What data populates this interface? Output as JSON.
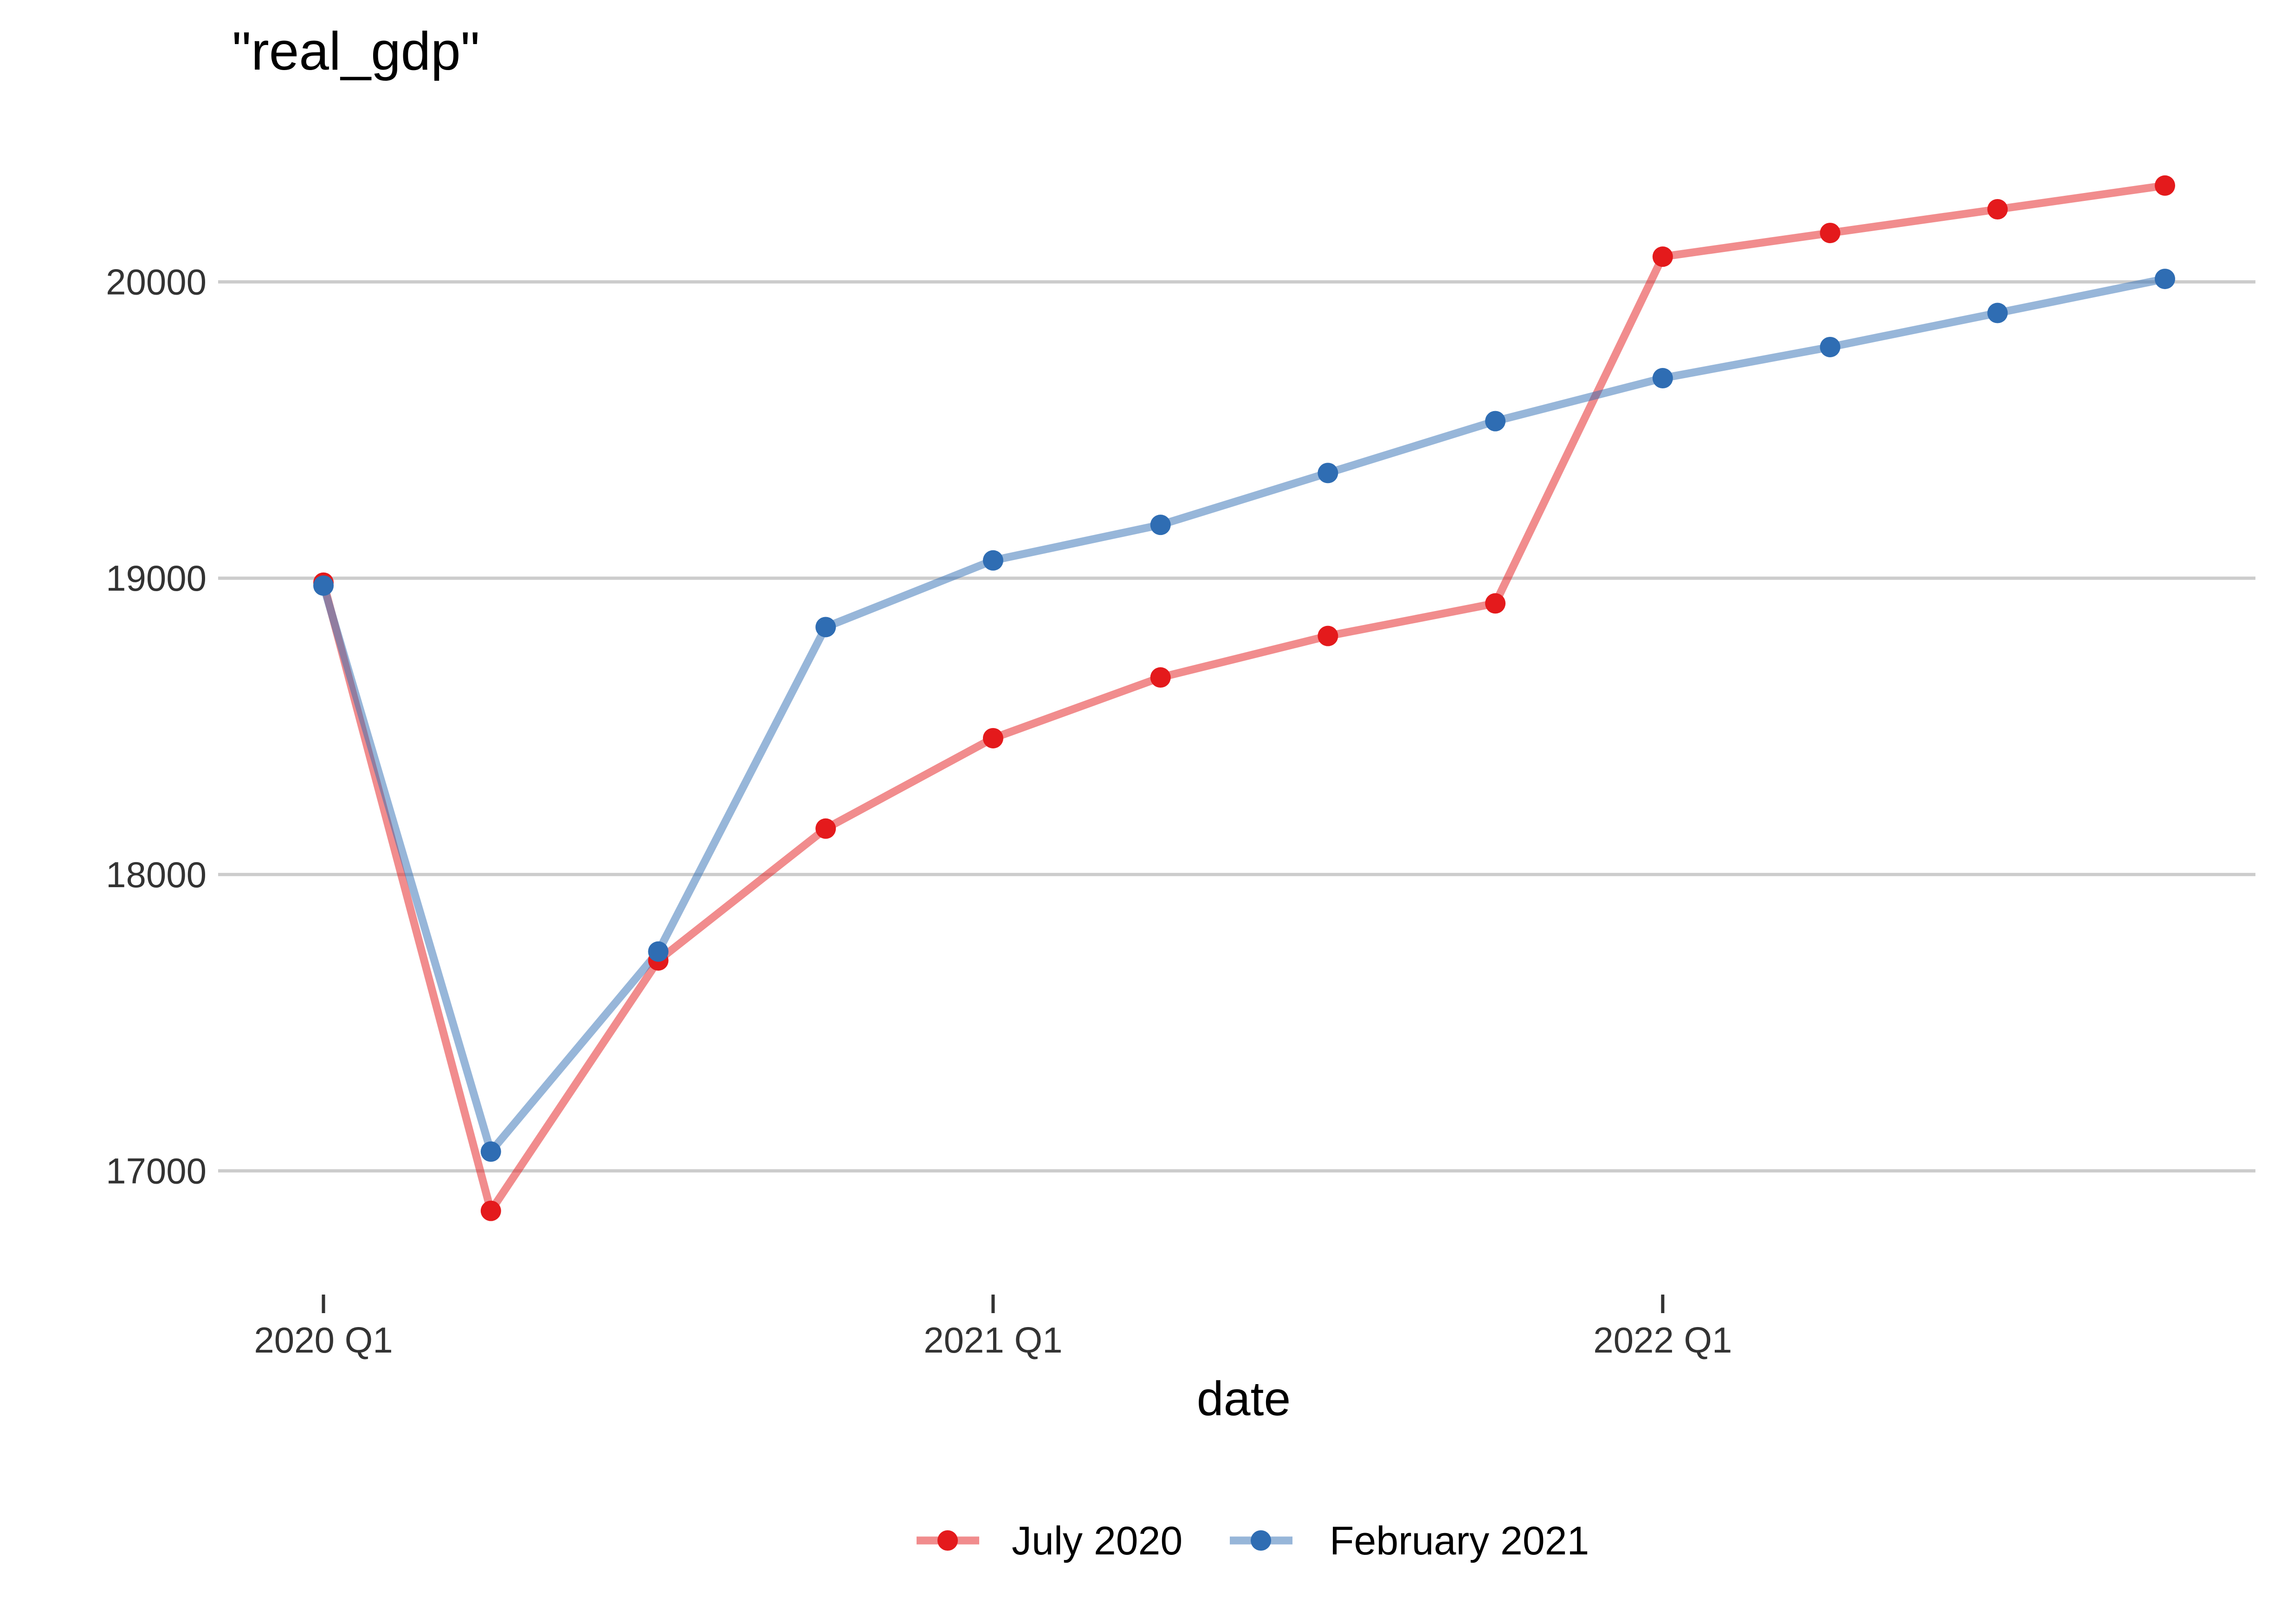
{
  "chart_data": {
    "type": "line",
    "title": "\"real_gdp\"",
    "xlabel": "date",
    "ylabel": "",
    "x": [
      "2020 Q1",
      "2020 Q2",
      "2020 Q3",
      "2020 Q4",
      "2021 Q1",
      "2021 Q2",
      "2021 Q3",
      "2021 Q4",
      "2022 Q1",
      "2022 Q2",
      "2022 Q3",
      "2022 Q4"
    ],
    "x_tick_labels": [
      "2020 Q1",
      "2021 Q1",
      "2022 Q1"
    ],
    "y_ticks": [
      17000,
      18000,
      19000,
      20000
    ],
    "y_tick_labels": [
      "17000",
      "18000",
      "19000",
      "20000"
    ],
    "ylim": [
      16700,
      20400
    ],
    "grid": "horizontal major only",
    "legend_position": "bottom",
    "series": [
      {
        "name": "July 2020",
        "color": "#e41a1c",
        "values": [
          18985,
          16865,
          17710,
          18155,
          18460,
          18665,
          18805,
          18915,
          20085,
          20165,
          20245,
          20325
        ]
      },
      {
        "name": "February 2021",
        "color": "#2f6db3",
        "values": [
          18975,
          17065,
          17740,
          18835,
          19060,
          19180,
          19355,
          19530,
          19675,
          19780,
          19895,
          20010
        ]
      }
    ]
  }
}
